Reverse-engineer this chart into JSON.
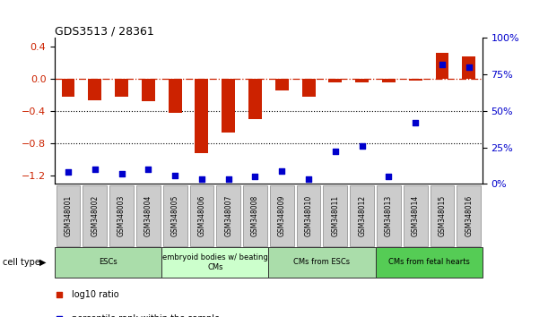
{
  "title": "GDS3513 / 28361",
  "samples": [
    "GSM348001",
    "GSM348002",
    "GSM348003",
    "GSM348004",
    "GSM348005",
    "GSM348006",
    "GSM348007",
    "GSM348008",
    "GSM348009",
    "GSM348010",
    "GSM348011",
    "GSM348012",
    "GSM348013",
    "GSM348014",
    "GSM348015",
    "GSM348016"
  ],
  "log10_ratio": [
    -0.22,
    -0.27,
    -0.22,
    -0.28,
    -0.42,
    -0.92,
    -0.67,
    -0.5,
    -0.15,
    -0.22,
    -0.05,
    -0.05,
    -0.05,
    -0.03,
    0.32,
    0.27
  ],
  "percentile_rank": [
    8,
    10,
    7,
    10,
    6,
    3,
    3,
    5,
    9,
    3,
    22,
    26,
    5,
    42,
    82,
    80
  ],
  "cell_type_groups": [
    {
      "label": "ESCs",
      "start": 0,
      "end": 4,
      "color": "#aaddaa"
    },
    {
      "label": "embryoid bodies w/ beating\nCMs",
      "start": 4,
      "end": 8,
      "color": "#ccffcc"
    },
    {
      "label": "CMs from ESCs",
      "start": 8,
      "end": 12,
      "color": "#aaddaa"
    },
    {
      "label": "CMs from fetal hearts",
      "start": 12,
      "end": 16,
      "color": "#55cc55"
    }
  ],
  "bar_color": "#cc2200",
  "dot_color": "#0000cc",
  "zero_line_color": "#cc2200",
  "left_ylim": [
    -1.3,
    0.5
  ],
  "left_yticks": [
    0.4,
    0.0,
    -0.4,
    -0.8,
    -1.2
  ],
  "right_ylim": [
    0,
    100
  ],
  "right_yticks": [
    0,
    25,
    50,
    75,
    100
  ],
  "right_yticklabels": [
    "0%",
    "25%",
    "50%",
    "75%",
    "100%"
  ],
  "dotted_line_values": [
    -0.4,
    -0.8
  ],
  "background_color": "#ffffff",
  "fig_width": 6.11,
  "fig_height": 3.54
}
